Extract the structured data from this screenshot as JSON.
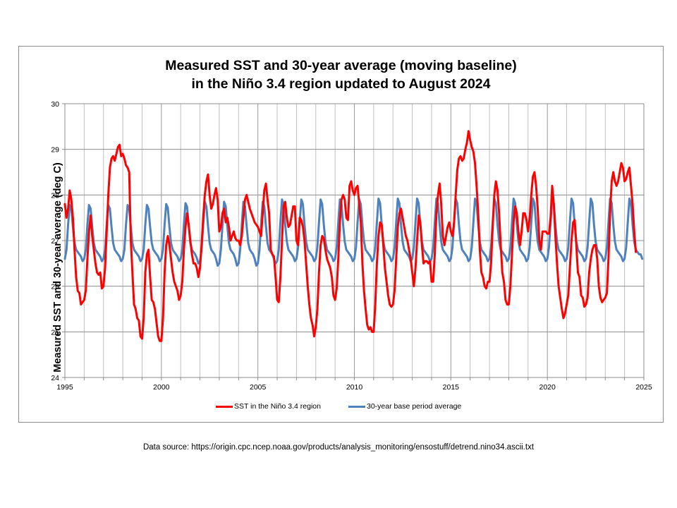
{
  "chart_data": {
    "type": "line",
    "title": [
      "Measured SST and 30-year average (moving baseline)",
      "in the Niño 3.4 region updated to August 2024"
    ],
    "xlabel": "",
    "ylabel": "Measured SST and 30-year average (deg C)",
    "xlim": [
      1995,
      2025
    ],
    "ylim": [
      24,
      30
    ],
    "xticks": [
      1995,
      2000,
      2005,
      2010,
      2015,
      2020,
      2025
    ],
    "xtick_labels": [
      "1995",
      "2000",
      "2005",
      "2010",
      "2015",
      "2020",
      "2025"
    ],
    "x_minor_gridlines_every_years": 1,
    "yticks": [
      24,
      25,
      26,
      27,
      28,
      29,
      30
    ],
    "ytick_labels": [
      "24",
      "25",
      "26",
      "27",
      "28",
      "29",
      "30"
    ],
    "grid": true,
    "legend_position": "bottom",
    "x_start": 1995.0,
    "x_step_months": 1,
    "series": [
      {
        "name": "SST in the Niño 3.4 region",
        "color": "#ff0000",
        "values": [
          27.8,
          27.5,
          27.7,
          28.1,
          27.9,
          27.5,
          26.8,
          26.2,
          25.9,
          25.85,
          25.6,
          25.65,
          25.7,
          25.9,
          26.6,
          27.2,
          27.55,
          27.1,
          26.8,
          26.5,
          26.3,
          26.25,
          26.3,
          25.95,
          26.0,
          26.4,
          27.2,
          28.0,
          28.6,
          28.8,
          28.85,
          28.75,
          28.9,
          29.05,
          29.1,
          28.85,
          28.9,
          28.8,
          28.65,
          28.6,
          28.5,
          27.0,
          26.3,
          25.6,
          25.5,
          25.3,
          25.25,
          24.9,
          24.85,
          25.3,
          26.3,
          26.7,
          26.8,
          26.2,
          25.7,
          25.65,
          25.5,
          25.2,
          24.9,
          24.8,
          24.8,
          25.3,
          26.3,
          26.9,
          27.1,
          26.9,
          26.6,
          26.3,
          26.1,
          26.0,
          25.9,
          25.7,
          25.8,
          26.1,
          26.8,
          27.3,
          27.6,
          27.35,
          27.0,
          26.7,
          26.5,
          26.5,
          26.4,
          26.2,
          26.4,
          26.9,
          27.5,
          28.0,
          28.3,
          28.45,
          28.0,
          27.7,
          27.8,
          28.0,
          28.15,
          27.9,
          27.2,
          27.3,
          27.6,
          27.7,
          27.4,
          27.5,
          27.3,
          27.0,
          27.1,
          27.2,
          27.05,
          27.0,
          27.0,
          26.9,
          27.1,
          27.5,
          27.9,
          28.0,
          27.85,
          27.7,
          27.6,
          27.5,
          27.4,
          27.35,
          27.3,
          27.2,
          27.1,
          27.6,
          28.1,
          28.25,
          27.9,
          27.6,
          26.8,
          26.7,
          26.65,
          26.2,
          25.7,
          25.65,
          26.2,
          27.0,
          27.75,
          27.85,
          27.5,
          27.3,
          27.35,
          27.55,
          27.75,
          27.75,
          27.0,
          26.9,
          27.5,
          27.45,
          27.3,
          27.0,
          26.5,
          26.0,
          25.6,
          25.3,
          25.15,
          24.9,
          25.1,
          25.5,
          26.3,
          26.9,
          27.1,
          27.05,
          26.8,
          26.6,
          26.5,
          26.4,
          26.2,
          25.8,
          25.7,
          25.95,
          26.6,
          27.4,
          27.9,
          28.0,
          27.9,
          27.5,
          27.45,
          28.2,
          28.3,
          28.1,
          28.0,
          28.15,
          28.2,
          27.8,
          27.4,
          26.5,
          25.9,
          25.5,
          25.15,
          25.05,
          25.1,
          25.0,
          25.0,
          25.6,
          26.5,
          27.1,
          27.4,
          27.35,
          26.9,
          26.4,
          26.1,
          25.8,
          25.6,
          25.55,
          25.6,
          25.9,
          26.6,
          27.3,
          27.6,
          27.7,
          27.5,
          27.3,
          27.1,
          27.0,
          26.8,
          26.6,
          26.3,
          26.0,
          26.4,
          27.0,
          27.55,
          27.4,
          26.9,
          26.5,
          26.55,
          26.55,
          26.5,
          26.55,
          26.1,
          26.1,
          26.7,
          27.6,
          28.0,
          28.25,
          27.8,
          27.1,
          26.9,
          27.1,
          27.3,
          27.4,
          27.2,
          27.1,
          27.4,
          28.0,
          28.55,
          28.8,
          28.85,
          28.75,
          28.8,
          29.0,
          29.15,
          29.4,
          29.2,
          29.05,
          28.95,
          28.7,
          28.2,
          27.6,
          26.8,
          26.3,
          26.2,
          26.0,
          25.95,
          26.1,
          26.1,
          26.5,
          27.3,
          28.0,
          28.3,
          28.1,
          27.6,
          26.9,
          26.3,
          26.1,
          25.7,
          25.6,
          25.6,
          26.0,
          26.7,
          27.4,
          27.75,
          27.6,
          27.2,
          26.9,
          27.2,
          27.6,
          27.6,
          27.45,
          27.2,
          27.5,
          28.0,
          28.4,
          28.5,
          28.2,
          27.7,
          27.0,
          26.8,
          27.2,
          27.2,
          27.2,
          27.15,
          27.15,
          27.5,
          28.2,
          27.8,
          27.1,
          26.5,
          26.0,
          25.75,
          25.5,
          25.3,
          25.4,
          25.6,
          25.8,
          26.4,
          27.0,
          27.4,
          27.45,
          26.9,
          26.3,
          26.2,
          25.8,
          25.75,
          25.55,
          25.6,
          25.75,
          26.3,
          26.6,
          26.8,
          26.9,
          26.9,
          26.6,
          26.0,
          25.75,
          25.65,
          25.7,
          25.75,
          25.85,
          26.6,
          27.6,
          28.3,
          28.5,
          28.3,
          28.2,
          28.3,
          28.5,
          28.7,
          28.6,
          28.3,
          28.35,
          28.5,
          28.6,
          28.2,
          27.8,
          27.2,
          26.75
        ]
      },
      {
        "name": "30-year base period average",
        "color": "#4f81bd",
        "values": [
          26.6,
          26.8,
          27.35,
          27.78,
          27.7,
          27.3,
          26.95,
          26.8,
          26.75,
          26.7,
          26.65,
          26.55,
          26.6,
          26.8,
          27.35,
          27.78,
          27.7,
          27.3,
          26.95,
          26.8,
          26.75,
          26.7,
          26.65,
          26.55,
          26.6,
          26.8,
          27.35,
          27.78,
          27.7,
          27.3,
          26.95,
          26.8,
          26.75,
          26.7,
          26.65,
          26.55,
          26.6,
          26.8,
          27.35,
          27.78,
          27.7,
          27.3,
          26.95,
          26.8,
          26.75,
          26.7,
          26.65,
          26.55,
          26.6,
          26.8,
          27.35,
          27.78,
          27.7,
          27.3,
          26.95,
          26.8,
          26.75,
          26.7,
          26.65,
          26.55,
          26.6,
          26.8,
          27.35,
          27.8,
          27.72,
          27.3,
          26.95,
          26.8,
          26.75,
          26.7,
          26.65,
          26.55,
          26.6,
          26.8,
          27.35,
          27.82,
          27.74,
          27.32,
          26.95,
          26.8,
          26.75,
          26.7,
          26.62,
          26.5,
          26.55,
          26.8,
          27.35,
          27.85,
          27.75,
          27.32,
          26.95,
          26.8,
          26.75,
          26.7,
          26.6,
          26.45,
          26.5,
          26.8,
          27.35,
          27.85,
          27.75,
          27.32,
          26.95,
          26.8,
          26.75,
          26.7,
          26.6,
          26.45,
          26.5,
          26.8,
          27.35,
          27.85,
          27.75,
          27.32,
          26.95,
          26.8,
          26.75,
          26.7,
          26.6,
          26.45,
          26.5,
          26.8,
          27.35,
          27.85,
          27.75,
          27.32,
          26.95,
          26.8,
          26.75,
          26.7,
          26.6,
          26.5,
          26.55,
          26.8,
          27.4,
          27.9,
          27.8,
          27.35,
          26.98,
          26.8,
          26.75,
          26.7,
          26.65,
          26.55,
          26.6,
          26.85,
          27.4,
          27.9,
          27.8,
          27.35,
          26.98,
          26.8,
          26.75,
          26.7,
          26.65,
          26.55,
          26.6,
          26.85,
          27.4,
          27.9,
          27.8,
          27.35,
          26.98,
          26.8,
          26.75,
          26.7,
          26.65,
          26.55,
          26.6,
          26.85,
          27.4,
          27.9,
          27.8,
          27.35,
          26.98,
          26.8,
          26.75,
          26.7,
          26.65,
          26.55,
          26.6,
          26.85,
          27.4,
          27.9,
          27.8,
          27.35,
          26.98,
          26.8,
          26.75,
          26.7,
          26.65,
          26.55,
          26.6,
          26.85,
          27.4,
          27.92,
          27.82,
          27.35,
          26.98,
          26.8,
          26.75,
          26.7,
          26.65,
          26.55,
          26.6,
          26.85,
          27.4,
          27.92,
          27.82,
          27.35,
          26.98,
          26.8,
          26.75,
          26.7,
          26.65,
          26.55,
          26.6,
          26.85,
          27.4,
          27.92,
          27.82,
          27.35,
          26.98,
          26.8,
          26.75,
          26.7,
          26.65,
          26.55,
          26.6,
          26.85,
          27.4,
          27.92,
          27.82,
          27.35,
          26.98,
          26.8,
          26.75,
          26.7,
          26.65,
          26.55,
          26.6,
          26.85,
          27.4,
          27.92,
          27.82,
          27.35,
          26.98,
          26.8,
          26.75,
          26.7,
          26.65,
          26.55,
          26.6,
          26.85,
          27.4,
          27.92,
          27.82,
          27.35,
          26.98,
          26.8,
          26.75,
          26.7,
          26.65,
          26.55,
          26.6,
          26.85,
          27.4,
          27.92,
          27.82,
          27.35,
          26.98,
          26.8,
          26.75,
          26.7,
          26.65,
          26.55,
          26.6,
          26.85,
          27.4,
          27.92,
          27.82,
          27.35,
          26.98,
          26.8,
          26.75,
          26.7,
          26.65,
          26.55,
          26.6,
          26.85,
          27.4,
          27.92,
          27.82,
          27.35,
          26.98,
          26.8,
          26.75,
          26.7,
          26.65,
          26.55,
          26.6,
          26.85,
          27.4,
          27.92,
          27.82,
          27.35,
          26.98,
          26.8,
          26.75,
          26.7,
          26.65,
          26.55,
          26.6,
          26.85,
          27.4,
          27.92,
          27.82,
          27.35,
          26.98,
          26.8,
          26.75,
          26.7,
          26.65,
          26.55,
          26.6,
          26.85,
          27.4,
          27.92,
          27.82,
          27.35,
          26.98,
          26.8,
          26.75,
          26.7,
          26.65,
          26.55,
          26.6,
          26.85,
          27.4,
          27.92,
          27.82,
          27.35,
          26.98,
          26.8,
          26.75,
          26.7,
          26.65,
          26.55,
          26.6,
          26.85,
          27.4,
          27.92,
          27.82,
          27.35,
          26.98,
          26.8,
          26.75,
          26.7,
          26.7,
          26.6
        ]
      }
    ]
  },
  "source_note": "Data source: https://origin.cpc.ncep.noaa.gov/products/analysis_monitoring/ensostuff/detrend.nino34.ascii.txt"
}
